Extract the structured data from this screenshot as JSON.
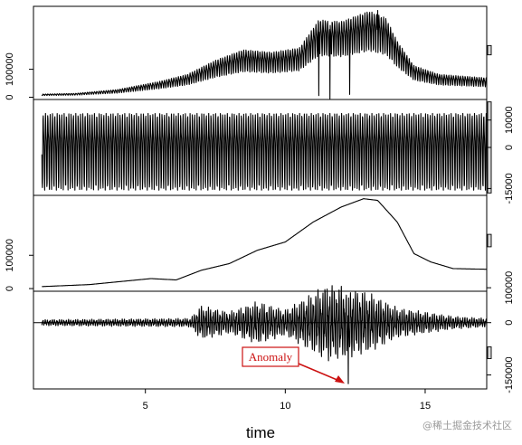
{
  "chart_data": {
    "type": "line",
    "xlabel": "time",
    "x_range": [
      1,
      17.2
    ],
    "x_ticks": [
      5,
      10,
      15
    ],
    "cycles_per_unit": 12,
    "panels": [
      {
        "name": "",
        "ylim": [
          -8000,
          325000
        ],
        "y_ticks": [
          0,
          100000
        ],
        "y_tick_side": "left",
        "scale_bar": 0.1,
        "trend_knots": [
          [
            1.3,
            9000
          ],
          [
            2.5,
            11000
          ],
          [
            4,
            22000
          ],
          [
            5.5,
            45000
          ],
          [
            6.5,
            65000
          ],
          [
            7.5,
            105000
          ],
          [
            8.5,
            135000
          ],
          [
            9.5,
            128000
          ],
          [
            10.5,
            140000
          ],
          [
            11.2,
            220000
          ],
          [
            12,
            215000
          ],
          [
            13,
            245000
          ],
          [
            13.6,
            225000
          ],
          [
            14,
            160000
          ],
          [
            14.6,
            90000
          ],
          [
            15.5,
            65000
          ],
          [
            17.2,
            55000
          ]
        ],
        "seasonal_amplitude_factor": 0.55,
        "spikes": [
          [
            11.2,
            6000
          ],
          [
            11.6,
            -5000
          ],
          [
            12.3,
            10000
          ],
          [
            13.3,
            310000
          ]
        ]
      },
      {
        "name": "",
        "ylim": [
          -17500,
          17500
        ],
        "y_ticks": [
          -15000,
          0,
          10000
        ],
        "y_tick_side": "right",
        "scale_bar": 0.95,
        "seasonal_amplitude": 14500
      },
      {
        "name": "",
        "ylim": [
          -8000,
          280000
        ],
        "y_ticks": [
          0,
          100000
        ],
        "y_tick_side": "left",
        "scale_bar": 0.13,
        "trend_knots": [
          [
            1.3,
            6000
          ],
          [
            3,
            12000
          ],
          [
            5.2,
            30000
          ],
          [
            6.1,
            26000
          ],
          [
            7,
            55000
          ],
          [
            8,
            75000
          ],
          [
            9,
            115000
          ],
          [
            10,
            140000
          ],
          [
            11,
            200000
          ],
          [
            12,
            245000
          ],
          [
            12.8,
            270000
          ],
          [
            13.3,
            265000
          ],
          [
            14,
            200000
          ],
          [
            14.6,
            105000
          ],
          [
            15.2,
            80000
          ],
          [
            16,
            60000
          ],
          [
            17.2,
            58000
          ]
        ]
      },
      {
        "name": "",
        "ylim": [
          -190000,
          90000
        ],
        "y_ticks": [
          -150000,
          0,
          100000
        ],
        "y_tick_side": "right",
        "scale_bar": 0.12,
        "envelope_knots": [
          [
            1.3,
            7000
          ],
          [
            6.6,
            10000
          ],
          [
            7,
            40000
          ],
          [
            8,
            25000
          ],
          [
            9,
            50000
          ],
          [
            10,
            30000
          ],
          [
            11,
            70000
          ],
          [
            11.5,
            90000
          ],
          [
            12,
            85000
          ],
          [
            13,
            70000
          ],
          [
            14,
            35000
          ],
          [
            15,
            25000
          ],
          [
            16,
            15000
          ],
          [
            17.2,
            10000
          ]
        ],
        "anomaly": {
          "time": 12.25,
          "value": -175000,
          "label": "Anomaly"
        }
      }
    ]
  },
  "watermark": "@稀土掘金技术社区",
  "colors": {
    "line": "#000000",
    "annotation": "#cc1111",
    "box": "#000000"
  }
}
